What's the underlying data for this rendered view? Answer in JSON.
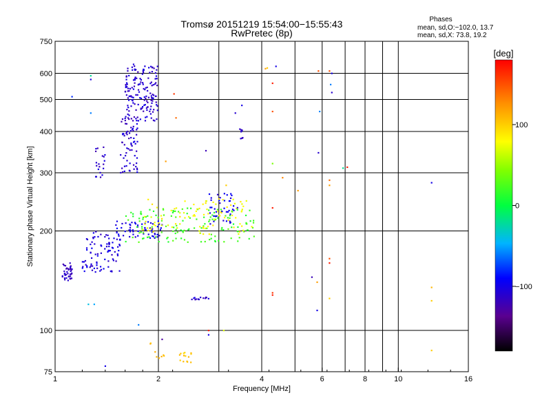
{
  "chart_data": {
    "type": "scatter",
    "title": "Tromsø 20151219 15:54:00−15:55:43",
    "subtitle": "RwPretec (8p)",
    "xlabel": "Frequency [MHz]",
    "ylabel": "Stationary phase Virtual Height [km]",
    "x_scale": "log",
    "y_scale": "log",
    "xlim": [
      1,
      16
    ],
    "ylim": [
      75,
      750
    ],
    "x_ticks": [
      {
        "value": 1,
        "label": "1"
      },
      {
        "value": 2,
        "label": "2"
      },
      {
        "value": 4,
        "label": "4"
      },
      {
        "value": 6,
        "label": "6"
      },
      {
        "value": 8,
        "label": "8"
      },
      {
        "value": 10,
        "label": "10"
      },
      {
        "value": 16,
        "label": "16"
      }
    ],
    "x_grid": [
      1,
      2,
      3,
      4,
      5,
      6,
      7,
      8,
      9,
      10,
      16
    ],
    "y_ticks": [
      {
        "value": 75,
        "label": "75"
      },
      {
        "value": 100,
        "label": "100"
      },
      {
        "value": 200,
        "label": "200"
      },
      {
        "value": 300,
        "label": "300"
      },
      {
        "value": 400,
        "label": "400"
      },
      {
        "value": 500,
        "label": "500"
      },
      {
        "value": 600,
        "label": "600"
      },
      {
        "value": 750,
        "label": "750"
      }
    ],
    "y_grid": [
      100,
      200,
      300,
      400,
      500,
      600
    ],
    "grid": true,
    "stats": {
      "heading": "Phases",
      "line_o": "mean, sd,O:−102.0, 13.7",
      "line_x": "mean, sd,X:  73.8, 19.2"
    },
    "colorbar": {
      "label": "[deg]",
      "range": [
        -180,
        180
      ],
      "ticks": [
        {
          "value": 100,
          "label": "100"
        },
        {
          "value": 0,
          "label": "0"
        },
        {
          "value": -100,
          "label": "−100"
        }
      ]
    },
    "clusters": [
      {
        "name": "o-low",
        "x": [
          1.05,
          1.12
        ],
        "y": [
          140,
          160
        ],
        "phase": -115,
        "n": 40
      },
      {
        "name": "o-rise",
        "x": [
          1.2,
          1.55
        ],
        "y": [
          150,
          200
        ],
        "phase": -105,
        "n": 90
      },
      {
        "name": "o-flat",
        "x": [
          1.5,
          2.05
        ],
        "y": [
          190,
          215
        ],
        "phase": -100,
        "n": 60
      },
      {
        "name": "o-upper-stem",
        "x": [
          1.55,
          1.75
        ],
        "y": [
          300,
          450
        ],
        "phase": -110,
        "n": 70
      },
      {
        "name": "o-upper",
        "x": [
          1.6,
          2.0
        ],
        "y": [
          430,
          640
        ],
        "phase": -110,
        "n": 160
      },
      {
        "name": "o-small",
        "x": [
          1.3,
          1.4
        ],
        "y": [
          290,
          360
        ],
        "phase": -112,
        "n": 20
      },
      {
        "name": "x-band-green",
        "x": [
          1.6,
          3.8
        ],
        "y": [
          185,
          235
        ],
        "phase": 20,
        "n": 140
      },
      {
        "name": "x-band-yellow",
        "x": [
          1.8,
          3.8
        ],
        "y": [
          195,
          250
        ],
        "phase": 80,
        "n": 90
      },
      {
        "name": "o-patch-3MHz",
        "x": [
          2.8,
          3.4
        ],
        "y": [
          210,
          260
        ],
        "phase": -100,
        "n": 40
      },
      {
        "name": "o-line-125",
        "x": [
          2.5,
          2.85
        ],
        "y": [
          124,
          126
        ],
        "phase": -110,
        "n": 14
      },
      {
        "name": "x-low-80",
        "x": [
          2.3,
          2.5
        ],
        "y": [
          80,
          86
        ],
        "phase": 100,
        "n": 14
      },
      {
        "name": "x-low-90",
        "x": [
          1.85,
          2.1
        ],
        "y": [
          80,
          92
        ],
        "phase": 110,
        "n": 8
      },
      {
        "name": "o-3.5MHz",
        "x": [
          3.45,
          3.52
        ],
        "y": [
          380,
          410
        ],
        "phase": -105,
        "n": 8
      }
    ],
    "points": [
      {
        "x": 1.12,
        "y": 510,
        "phase": -80
      },
      {
        "x": 1.27,
        "y": 590,
        "phase": -20
      },
      {
        "x": 1.27,
        "y": 575,
        "phase": -105
      },
      {
        "x": 1.27,
        "y": 455,
        "phase": -60
      },
      {
        "x": 1.25,
        "y": 120,
        "phase": -40
      },
      {
        "x": 1.3,
        "y": 120,
        "phase": -50
      },
      {
        "x": 1.4,
        "y": 78,
        "phase": -100
      },
      {
        "x": 1.75,
        "y": 104,
        "phase": -60
      },
      {
        "x": 2.05,
        "y": 94,
        "phase": -130
      },
      {
        "x": 2.22,
        "y": 520,
        "phase": 160
      },
      {
        "x": 2.25,
        "y": 440,
        "phase": 140
      },
      {
        "x": 2.1,
        "y": 325,
        "phase": 120
      },
      {
        "x": 2.75,
        "y": 350,
        "phase": -120
      },
      {
        "x": 3.35,
        "y": 455,
        "phase": -110
      },
      {
        "x": 3.5,
        "y": 480,
        "phase": -100
      },
      {
        "x": 4.1,
        "y": 620,
        "phase": 120
      },
      {
        "x": 4.15,
        "y": 623,
        "phase": 100
      },
      {
        "x": 4.4,
        "y": 630,
        "phase": -100
      },
      {
        "x": 4.3,
        "y": 560,
        "phase": 170
      },
      {
        "x": 4.3,
        "y": 460,
        "phase": 150
      },
      {
        "x": 4.3,
        "y": 320,
        "phase": 40
      },
      {
        "x": 4.6,
        "y": 290,
        "phase": 130
      },
      {
        "x": 5.1,
        "y": 265,
        "phase": 120
      },
      {
        "x": 4.3,
        "y": 235,
        "phase": 170
      },
      {
        "x": 4.3,
        "y": 130,
        "phase": 160
      },
      {
        "x": 4.3,
        "y": 128,
        "phase": 170
      },
      {
        "x": 5.6,
        "y": 145,
        "phase": -120
      },
      {
        "x": 5.85,
        "y": 610,
        "phase": 150
      },
      {
        "x": 5.9,
        "y": 460,
        "phase": -60
      },
      {
        "x": 5.85,
        "y": 345,
        "phase": -110
      },
      {
        "x": 5.8,
        "y": 140,
        "phase": 120
      },
      {
        "x": 5.8,
        "y": 115,
        "phase": -100
      },
      {
        "x": 6.3,
        "y": 610,
        "phase": 150
      },
      {
        "x": 6.35,
        "y": 555,
        "phase": -60
      },
      {
        "x": 6.4,
        "y": 525,
        "phase": -110
      },
      {
        "x": 6.4,
        "y": 600,
        "phase": -100
      },
      {
        "x": 6.3,
        "y": 285,
        "phase": 140
      },
      {
        "x": 6.3,
        "y": 275,
        "phase": 120
      },
      {
        "x": 6.3,
        "y": 165,
        "phase": 150
      },
      {
        "x": 6.3,
        "y": 160,
        "phase": 170
      },
      {
        "x": 6.3,
        "y": 125,
        "phase": 100
      },
      {
        "x": 6.9,
        "y": 310,
        "phase": -20
      },
      {
        "x": 7.1,
        "y": 312,
        "phase": 170
      },
      {
        "x": 12.5,
        "y": 280,
        "phase": -100
      },
      {
        "x": 12.5,
        "y": 135,
        "phase": 110
      },
      {
        "x": 12.5,
        "y": 123,
        "phase": 100
      },
      {
        "x": 12.5,
        "y": 87,
        "phase": 100
      },
      {
        "x": 2.8,
        "y": 100,
        "phase": 170
      },
      {
        "x": 3.1,
        "y": 100,
        "phase": 70
      },
      {
        "x": 2.8,
        "y": 97,
        "phase": -100
      },
      {
        "x": 3.0,
        "y": 250,
        "phase": 90
      },
      {
        "x": 3.15,
        "y": 275,
        "phase": 100
      }
    ]
  }
}
